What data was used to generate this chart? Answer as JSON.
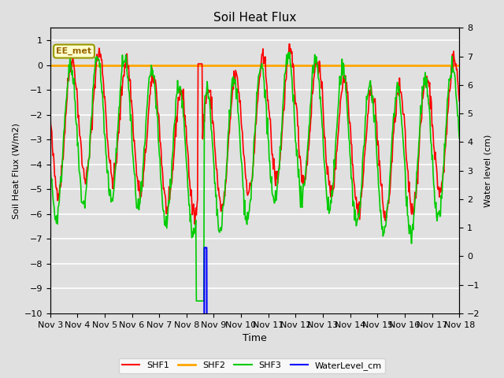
{
  "title": "Soil Heat Flux",
  "ylabel_left": "Soil Heat Flux (W/m2)",
  "ylabel_right": "Water level (cm)",
  "xlabel": "Time",
  "ylim_left": [
    -10.0,
    1.5
  ],
  "ylim_right": [
    -2.0,
    8.0
  ],
  "bg_color": "#e0e0e0",
  "plot_bg_color": "#e0e0e0",
  "grid_color": "white",
  "annotation_text": "EE_met",
  "annotation_fg": "#996600",
  "annotation_bg": "#ffffcc",
  "annotation_edge": "#999900",
  "shf2_color": "#FFA500",
  "shf1_color": "#FF0000",
  "shf3_color": "#00CC00",
  "water_color": "#0000FF",
  "x_tick_labels": [
    "Nov 3",
    "Nov 4",
    "Nov 5",
    "Nov 6",
    "Nov 7",
    "Nov 8",
    "Nov 9",
    "Nov 10",
    "Nov 11",
    "Nov 12",
    "Nov 13",
    "Nov 14",
    "Nov 15",
    "Nov 16",
    "Nov 17",
    "Nov 18"
  ],
  "yticks_left": [
    -10.0,
    -9.0,
    -8.0,
    -7.0,
    -6.0,
    -5.0,
    -4.0,
    -3.0,
    -2.0,
    -1.0,
    0.0,
    1.0
  ],
  "yticks_right": [
    -2.0,
    -1.0,
    0.0,
    1.0,
    2.0,
    3.0,
    4.0,
    5.0,
    6.0,
    7.0,
    8.0
  ],
  "n_days": 15,
  "points_per_day": 48
}
